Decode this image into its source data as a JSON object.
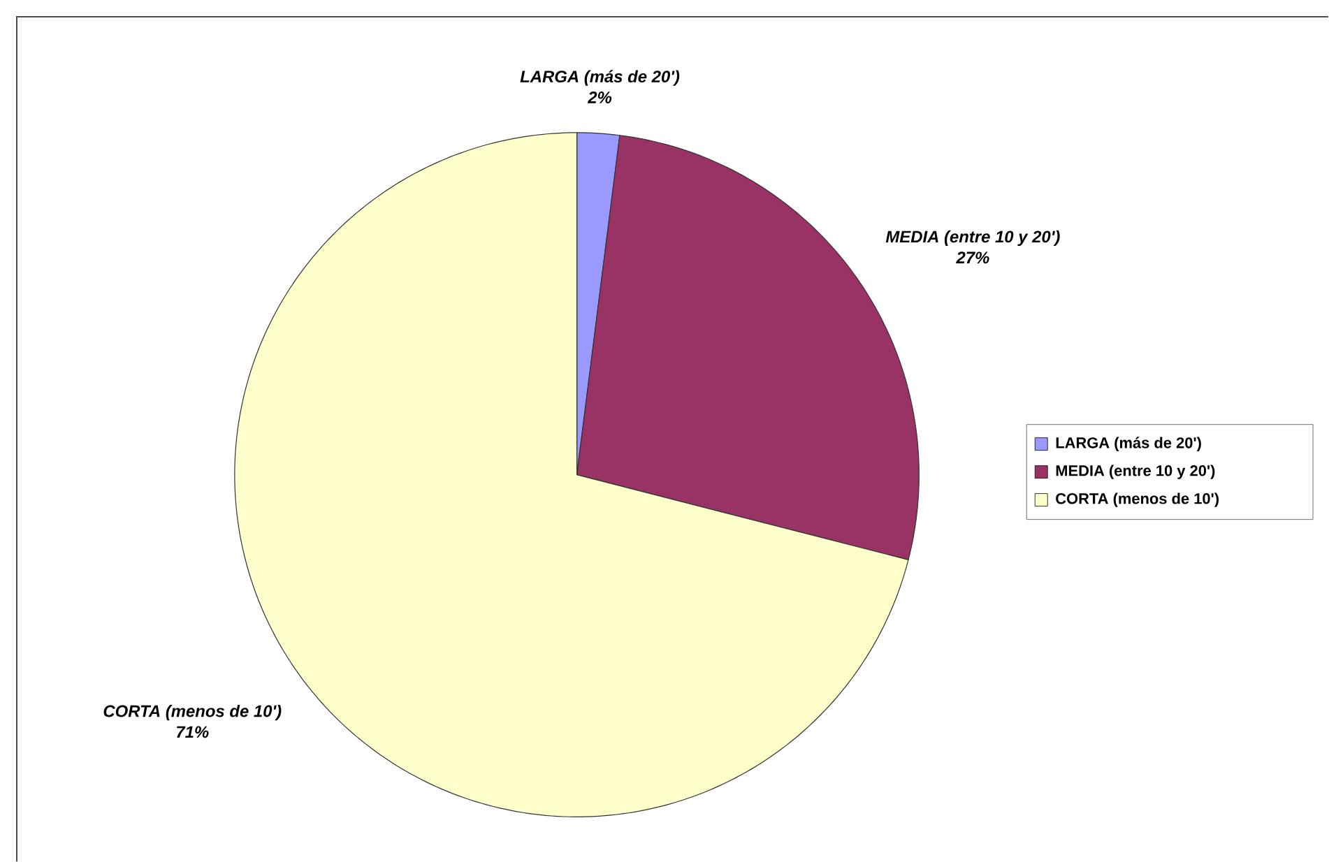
{
  "chart_data": {
    "type": "pie",
    "categories": [
      "LARGA (más de 20')",
      "MEDIA (entre 10 y 20')",
      "CORTA (menos de 10')"
    ],
    "values": [
      2,
      27,
      71
    ],
    "value_labels": [
      "2%",
      "27%",
      "71%"
    ],
    "colors": [
      "#9999ff",
      "#993366",
      "#ffffcc"
    ],
    "legend": "right"
  }
}
